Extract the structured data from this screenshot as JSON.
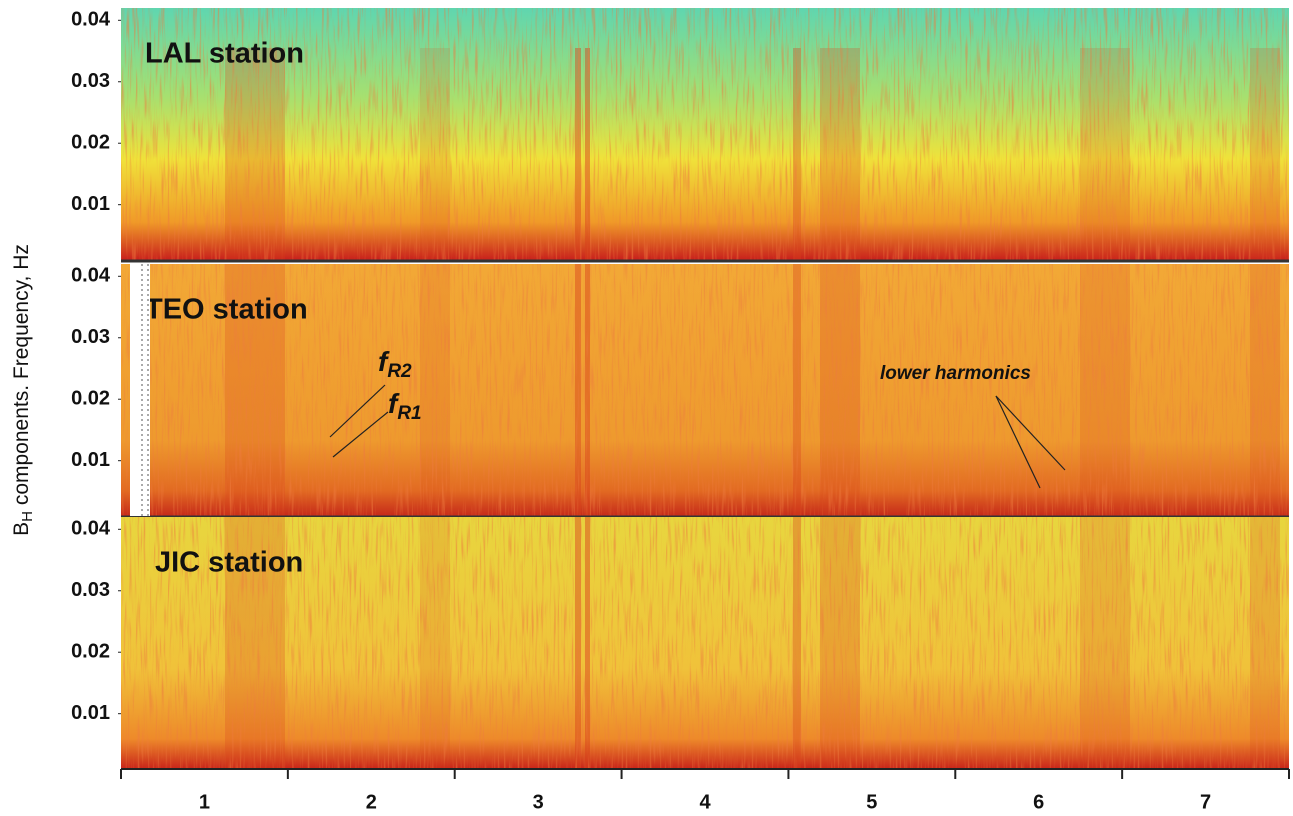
{
  "chart_data": {
    "type": "spectrogram",
    "ylabel_main": "B",
    "ylabel_sub": "H",
    "ylabel_rest": " components. Frequency, Hz",
    "categories": [
      1,
      2,
      3,
      4,
      5,
      6,
      7
    ],
    "panels": [
      {
        "title": "LAL station",
        "ylim": [
          0.001,
          0.042
        ],
        "yticks": [
          0.01,
          0.02,
          0.03,
          0.04
        ]
      },
      {
        "title": "TEO station",
        "ylim": [
          0.001,
          0.042
        ],
        "yticks": [
          0.01,
          0.02,
          0.03,
          0.04
        ]
      },
      {
        "title": "JIC station",
        "ylim": [
          0.001,
          0.042
        ],
        "yticks": [
          0.01,
          0.02,
          0.03,
          0.04
        ]
      }
    ],
    "annotations": {
      "fR2_f": "f",
      "fR2_sub": "R2",
      "fR1_f": "f",
      "fR1_sub": "R1",
      "lower": "lower harmonics"
    }
  }
}
